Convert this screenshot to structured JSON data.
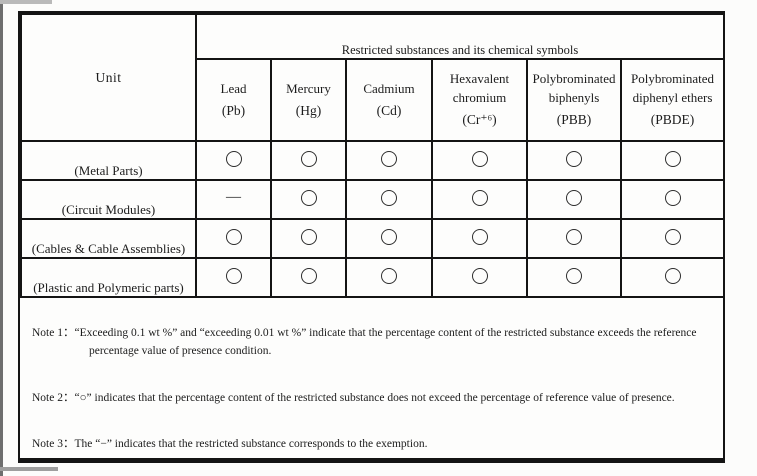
{
  "document": {
    "table": {
      "unit_header": "Unit",
      "group_header": "Restricted substances and its chemical symbols",
      "columns": [
        {
          "name": "Lead",
          "symbol": "(Pb)"
        },
        {
          "name": "Mercury",
          "symbol": "(Hg)"
        },
        {
          "name": "Cadmium",
          "symbol": "(Cd)"
        },
        {
          "name": "Hexavalent chromium",
          "symbol": "(Cr⁺⁶)"
        },
        {
          "name": "Polybrominated biphenyls",
          "symbol": "(PBB)"
        },
        {
          "name": "Polybrominated diphenyl ethers",
          "symbol": "(PBDE)"
        }
      ],
      "marks": {
        "present_ok": "○",
        "exempt": "—"
      },
      "rows": [
        {
          "label": "(Metal Parts)",
          "values": [
            "○",
            "○",
            "○",
            "○",
            "○",
            "○"
          ]
        },
        {
          "label": "(Circuit Modules)",
          "values": [
            "—",
            "○",
            "○",
            "○",
            "○",
            "○"
          ]
        },
        {
          "label": "(Cables & Cable Assemblies)",
          "values": [
            "○",
            "○",
            "○",
            "○",
            "○",
            "○"
          ]
        },
        {
          "label": "(Plastic and Polymeric parts)",
          "values": [
            "○",
            "○",
            "○",
            "○",
            "○",
            "○"
          ]
        }
      ]
    },
    "notes": [
      {
        "text": "Note 1：“Exceeding 0.1 wt %” and “exceeding 0.01 wt %” indicate that the percentage content of the restricted substance exceeds the reference percentage value of presence condition."
      },
      {
        "text": "Note 2：“○” indicates that the percentage content of the restricted substance does not exceed the percentage of reference value of presence."
      },
      {
        "text": "Note 3：The “−” indicates that the restricted substance corresponds to the exemption."
      }
    ],
    "colors": {
      "border": "#141414",
      "text": "#1c1c1c",
      "background": "#fdfdfc"
    }
  }
}
